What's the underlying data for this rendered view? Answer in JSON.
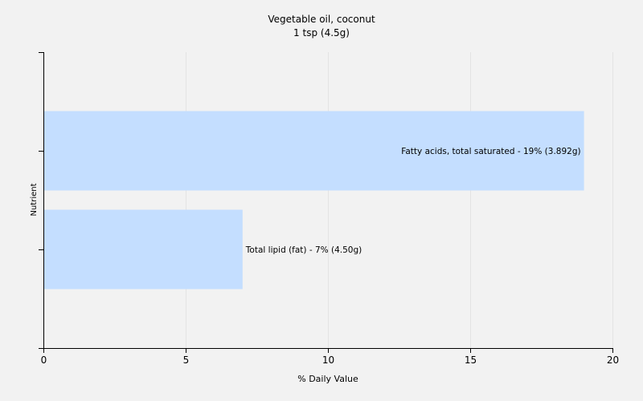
{
  "chart_data": {
    "type": "bar",
    "orientation": "horizontal",
    "title": "Vegetable oil, coconut",
    "subtitle": "1 tsp (4.5g)",
    "xlabel": "% Daily Value",
    "ylabel": "Nutrient",
    "xlim": [
      0,
      20
    ],
    "x_ticks": [
      0,
      5,
      10,
      15,
      20
    ],
    "grid": true,
    "categories": [
      "Fatty acids, total saturated",
      "Total lipid (fat)"
    ],
    "values": [
      19,
      7
    ],
    "data_labels": [
      "Fatty acids, total saturated - 19% (3.892g)",
      "Total lipid (fat) - 7% (4.50g)"
    ],
    "colors": {
      "bar": "#c4deff",
      "grid": "#e3e3e3",
      "axis": "#000000",
      "background": "#f2f2f2"
    }
  }
}
